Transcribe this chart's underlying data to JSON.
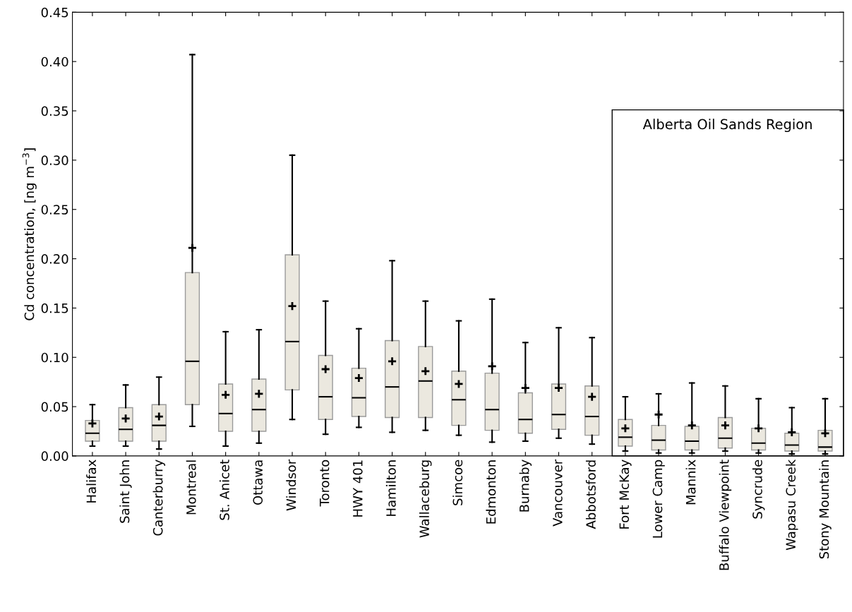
{
  "chart_data": {
    "type": "box",
    "ylabel": "Cd concentration, [ng m$^{−3}$]",
    "categories": [
      "Halifax",
      "Saint John",
      "Canterburry",
      "Montreal",
      "St. Anicet",
      "Ottawa",
      "Windsor",
      "Toronto",
      "HWY 401",
      "Hamilton",
      "Wallaceburg",
      "Simcoe",
      "Edmonton",
      "Burnaby",
      "Vancouver",
      "Abbotsford",
      "Fort McKay",
      "Lower Camp",
      "Mannix",
      "Buffalo Viewpoint",
      "Syncrude",
      "Wapasu Creek",
      "Stony Mountain"
    ],
    "color": "#ebe8df",
    "marker": "cross",
    "boxes": [
      {
        "low": 0.01,
        "q1": 0.015,
        "median": 0.023,
        "q3": 0.036,
        "high": 0.052,
        "mean": 0.033
      },
      {
        "low": 0.01,
        "q1": 0.015,
        "median": 0.027,
        "q3": 0.049,
        "high": 0.072,
        "mean": 0.038
      },
      {
        "low": 0.007,
        "q1": 0.015,
        "median": 0.031,
        "q3": 0.052,
        "high": 0.08,
        "mean": 0.04
      },
      {
        "low": 0.03,
        "q1": 0.052,
        "median": 0.096,
        "q3": 0.186,
        "high": 0.407,
        "mean": 0.211
      },
      {
        "low": 0.01,
        "q1": 0.025,
        "median": 0.043,
        "q3": 0.073,
        "high": 0.126,
        "mean": 0.062
      },
      {
        "low": 0.013,
        "q1": 0.025,
        "median": 0.047,
        "q3": 0.078,
        "high": 0.128,
        "mean": 0.063
      },
      {
        "low": 0.037,
        "q1": 0.067,
        "median": 0.116,
        "q3": 0.204,
        "high": 0.305,
        "mean": 0.152
      },
      {
        "low": 0.022,
        "q1": 0.037,
        "median": 0.06,
        "q3": 0.102,
        "high": 0.157,
        "mean": 0.088
      },
      {
        "low": 0.029,
        "q1": 0.04,
        "median": 0.059,
        "q3": 0.089,
        "high": 0.129,
        "mean": 0.079
      },
      {
        "low": 0.024,
        "q1": 0.039,
        "median": 0.07,
        "q3": 0.117,
        "high": 0.198,
        "mean": 0.096
      },
      {
        "low": 0.026,
        "q1": 0.039,
        "median": 0.076,
        "q3": 0.111,
        "high": 0.157,
        "mean": 0.086
      },
      {
        "low": 0.021,
        "q1": 0.031,
        "median": 0.057,
        "q3": 0.086,
        "high": 0.137,
        "mean": 0.073
      },
      {
        "low": 0.014,
        "q1": 0.026,
        "median": 0.047,
        "q3": 0.084,
        "high": 0.159,
        "mean": 0.091
      },
      {
        "low": 0.015,
        "q1": 0.023,
        "median": 0.037,
        "q3": 0.064,
        "high": 0.115,
        "mean": 0.069
      },
      {
        "low": 0.018,
        "q1": 0.027,
        "median": 0.042,
        "q3": 0.073,
        "high": 0.13,
        "mean": 0.069
      },
      {
        "low": 0.012,
        "q1": 0.021,
        "median": 0.04,
        "q3": 0.071,
        "high": 0.12,
        "mean": 0.06
      },
      {
        "low": 0.005,
        "q1": 0.01,
        "median": 0.019,
        "q3": 0.037,
        "high": 0.06,
        "mean": 0.028
      },
      {
        "low": 0.003,
        "q1": 0.006,
        "median": 0.016,
        "q3": 0.031,
        "high": 0.063,
        "mean": 0.042
      },
      {
        "low": 0.003,
        "q1": 0.006,
        "median": 0.015,
        "q3": 0.03,
        "high": 0.074,
        "mean": 0.031
      },
      {
        "low": 0.005,
        "q1": 0.008,
        "median": 0.018,
        "q3": 0.039,
        "high": 0.071,
        "mean": 0.031
      },
      {
        "low": 0.003,
        "q1": 0.006,
        "median": 0.013,
        "q3": 0.028,
        "high": 0.058,
        "mean": 0.028
      },
      {
        "low": 0.002,
        "q1": 0.005,
        "median": 0.011,
        "q3": 0.023,
        "high": 0.049,
        "mean": 0.024
      },
      {
        "low": 0.002,
        "q1": 0.005,
        "median": 0.009,
        "q3": 0.026,
        "high": 0.058,
        "mean": 0.023
      }
    ],
    "ylim": [
      0,
      0.45
    ],
    "yticks": [
      {
        "value": 0,
        "label": "0.00"
      },
      {
        "value": 0.05,
        "label": "0.05"
      },
      {
        "value": 0.1,
        "label": "0.10"
      },
      {
        "value": 0.15,
        "label": "0.15"
      },
      {
        "value": 0.2,
        "label": "0.20"
      },
      {
        "value": 0.25,
        "label": "0.25"
      },
      {
        "value": 0.3,
        "label": "0.30"
      },
      {
        "value": 0.35,
        "label": "0.35"
      },
      {
        "value": 0.4,
        "label": "0.40"
      },
      {
        "value": 0.45,
        "label": "0.45"
      }
    ],
    "annotations": [
      "Alberta Oil Sands Region"
    ],
    "grid": false,
    "legend": false
  }
}
